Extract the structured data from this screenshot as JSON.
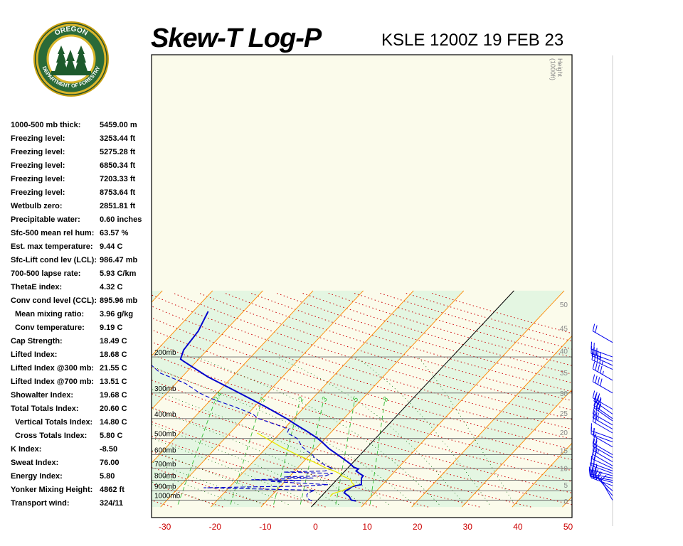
{
  "header": {
    "title": "Skew-T Log-P",
    "subtitle": "KSLE 1200Z 19 FEB 23"
  },
  "logo": {
    "text_top": "OREGON",
    "text_bottom": "DEPARTMENT OF FORESTRY"
  },
  "stats": [
    {
      "label": "1000-500 mb thick:",
      "value": "5459.00 m"
    },
    {
      "label": "Freezing level:",
      "value": "3253.44 ft"
    },
    {
      "label": "Freezing level:",
      "value": "5275.28 ft"
    },
    {
      "label": "Freezing level:",
      "value": "6850.34 ft"
    },
    {
      "label": "Freezing level:",
      "value": "7203.33 ft"
    },
    {
      "label": "Freezing level:",
      "value": "8753.64 ft"
    },
    {
      "label": "Wetbulb zero:",
      "value": "2851.81 ft"
    },
    {
      "label": "Precipitable water:",
      "value": "0.60 inches"
    },
    {
      "label": "Sfc-500 mean rel hum:",
      "value": "63.57 %"
    },
    {
      "label": "Est. max temperature:",
      "value": "9.44 C"
    },
    {
      "label": "Sfc-Lift cond lev (LCL):",
      "value": "986.47 mb"
    },
    {
      "label": "700-500 lapse rate:",
      "value": "5.93 C/km"
    },
    {
      "label": "ThetaE index:",
      "value": "4.32 C"
    },
    {
      "label": "Conv cond level (CCL):",
      "value": "895.96 mb"
    },
    {
      "label": "Mean mixing ratio:",
      "value": "3.96 g/kg",
      "indent": true
    },
    {
      "label": "Conv temperature:",
      "value": "9.19 C",
      "indent": true
    },
    {
      "label": "Cap Strength:",
      "value": "18.49 C"
    },
    {
      "label": "Lifted Index:",
      "value": "18.68 C"
    },
    {
      "label": "Lifted Index @300 mb:",
      "value": "21.55 C"
    },
    {
      "label": "Lifted Index @700 mb:",
      "value": "13.51 C"
    },
    {
      "label": "Showalter Index:",
      "value": "19.68 C"
    },
    {
      "label": "Total Totals Index:",
      "value": "20.60 C"
    },
    {
      "label": "Vertical Totals Index:",
      "value": "14.80 C",
      "indent": true
    },
    {
      "label": "Cross Totals Index:",
      "value": "5.80 C",
      "indent": true
    },
    {
      "label": "K Index:",
      "value": "-8.50"
    },
    {
      "label": "Sweat Index:",
      "value": "76.00"
    },
    {
      "label": "Energy Index:",
      "value": "5.80"
    },
    {
      "label": "Yonker Mixing Height:",
      "value": "4862 ft"
    },
    {
      "label": "Transport wind:",
      "value": "324/11"
    }
  ],
  "chart_data": {
    "type": "line",
    "x_ticks": [
      -30,
      -20,
      -10,
      0,
      10,
      20,
      30,
      40,
      50
    ],
    "pressure_labels": [
      {
        "p": 200,
        "label": "200mb"
      },
      {
        "p": 300,
        "label": "300mb"
      },
      {
        "p": 400,
        "label": "400mb"
      },
      {
        "p": 500,
        "label": "500mb"
      },
      {
        "p": 600,
        "label": "600mb"
      },
      {
        "p": 700,
        "label": "700mb"
      },
      {
        "p": 800,
        "label": "800mb"
      },
      {
        "p": 900,
        "label": "900mb"
      },
      {
        "p": 1000,
        "label": "1000mb"
      }
    ],
    "height_axis_label": [
      "Height",
      "(1000ft)"
    ],
    "height_ticks": [
      {
        "ft": 0,
        "label": "0"
      },
      {
        "ft": 5,
        "label": "5"
      },
      {
        "ft": 10,
        "label": "10"
      },
      {
        "ft": 15,
        "label": "15"
      },
      {
        "ft": 20,
        "label": "20"
      },
      {
        "ft": 25,
        "label": "25"
      },
      {
        "ft": 30,
        "label": "30"
      },
      {
        "ft": 35,
        "label": "35"
      },
      {
        "ft": 40,
        "label": "40"
      },
      {
        "ft": 45,
        "label": "45"
      },
      {
        "ft": 50,
        "label": "50"
      }
    ],
    "mixing_ratio_labels": [
      "0.4",
      "1",
      "2",
      "3",
      "5",
      "8"
    ],
    "series": [
      {
        "color": "#0000cc",
        "style": "solid",
        "points": [
          {
            "p": 1010,
            "t": 7.8
          },
          {
            "p": 1000,
            "t": 6.7
          },
          {
            "p": 960,
            "t": 5.6
          },
          {
            "p": 920,
            "t": 3.9
          },
          {
            "p": 900,
            "t": 3.8
          },
          {
            "p": 880,
            "t": 4.2
          },
          {
            "p": 860,
            "t": 4.3
          },
          {
            "p": 850,
            "t": 4.9
          },
          {
            "p": 840,
            "t": 5.8
          },
          {
            "p": 800,
            "t": 5.0
          },
          {
            "p": 780,
            "t": 4.6
          },
          {
            "p": 760,
            "t": 4.5
          },
          {
            "p": 740,
            "t": 3.3
          },
          {
            "p": 720,
            "t": 2.2
          },
          {
            "p": 705,
            "t": 2.3
          },
          {
            "p": 690,
            "t": 1.0
          },
          {
            "p": 670,
            "t": 0.0
          },
          {
            "p": 650,
            "t": -1.2
          },
          {
            "p": 600,
            "t": -4.5
          },
          {
            "p": 560,
            "t": -7.4
          },
          {
            "p": 520,
            "t": -10.0
          },
          {
            "p": 495,
            "t": -11.9
          },
          {
            "p": 460,
            "t": -15.1
          },
          {
            "p": 430,
            "t": -18.2
          },
          {
            "p": 400,
            "t": -21.4
          },
          {
            "p": 350,
            "t": -27.8
          },
          {
            "p": 300,
            "t": -35.6
          },
          {
            "p": 250,
            "t": -44.9
          },
          {
            "p": 210,
            "t": -52.6
          },
          {
            "p": 205,
            "t": -53.6
          },
          {
            "p": 185,
            "t": -54.7
          },
          {
            "p": 150,
            "t": -55.3
          },
          {
            "p": 120,
            "t": -57.0
          }
        ]
      },
      {
        "color": "#0000cc",
        "style": "dashed",
        "points": [
          {
            "p": 1010,
            "t": -1.0
          },
          {
            "p": 980,
            "t": -2.4
          },
          {
            "p": 960,
            "t": -2.8
          },
          {
            "p": 940,
            "t": -3.2
          },
          {
            "p": 920,
            "t": -3.2
          },
          {
            "p": 895,
            "t": -2.4
          },
          {
            "p": 870,
            "t": -25.0
          },
          {
            "p": 860,
            "t": -14.0
          },
          {
            "p": 855,
            "t": -6.0
          },
          {
            "p": 840,
            "t": -0.8
          },
          {
            "p": 820,
            "t": -9.0
          },
          {
            "p": 810,
            "t": -13.0
          },
          {
            "p": 800,
            "t": -7.0
          },
          {
            "p": 795,
            "t": -17.0
          },
          {
            "p": 780,
            "t": -5.0
          },
          {
            "p": 770,
            "t": -11.0
          },
          {
            "p": 760,
            "t": -3.0
          },
          {
            "p": 740,
            "t": -2.0
          },
          {
            "p": 730,
            "t": -12.0
          },
          {
            "p": 720,
            "t": -4.0
          },
          {
            "p": 700,
            "t": -2.9
          },
          {
            "p": 680,
            "t": -4.8
          },
          {
            "p": 650,
            "t": -6.6
          },
          {
            "p": 620,
            "t": -8.6
          },
          {
            "p": 600,
            "t": -9.5
          },
          {
            "p": 580,
            "t": -11.0
          },
          {
            "p": 550,
            "t": -13.0
          },
          {
            "p": 520,
            "t": -14.5
          },
          {
            "p": 500,
            "t": -15.6
          },
          {
            "p": 470,
            "t": -18.6
          },
          {
            "p": 450,
            "t": -19.0
          },
          {
            "p": 430,
            "t": -22.0
          },
          {
            "p": 400,
            "t": -27.0
          },
          {
            "p": 380,
            "t": -29.0
          },
          {
            "p": 350,
            "t": -34.0
          },
          {
            "p": 320,
            "t": -40.0
          },
          {
            "p": 300,
            "t": -43.5
          },
          {
            "p": 270,
            "t": -48.0
          },
          {
            "p": 250,
            "t": -52.5
          },
          {
            "p": 240,
            "t": -55.0
          },
          {
            "p": 215,
            "t": -59.0
          },
          {
            "p": 200,
            "t": -61.0
          },
          {
            "p": 190,
            "t": -62.0
          },
          {
            "p": 160,
            "t": -71.0
          },
          {
            "p": 140,
            "t": -72.0
          },
          {
            "p": 110,
            "t": -80.0
          }
        ]
      },
      {
        "color": "#e8e800",
        "style": "solid",
        "points": [
          {
            "p": 960,
            "t": 1.8
          },
          {
            "p": 930,
            "t": 1.8
          },
          {
            "p": 900,
            "t": 3.1
          },
          {
            "p": 870,
            "t": 3.8
          },
          {
            "p": 845,
            "t": 4.5
          },
          {
            "p": 820,
            "t": 3.5
          },
          {
            "p": 800,
            "t": 3.0
          },
          {
            "p": 780,
            "t": 1.8
          },
          {
            "p": 760,
            "t": 0.3
          },
          {
            "p": 740,
            "t": -0.7
          },
          {
            "p": 720,
            "t": -2.2
          },
          {
            "p": 700,
            "t": -4.1
          },
          {
            "p": 650,
            "t": -8.0
          },
          {
            "p": 600,
            "t": -12.6
          },
          {
            "p": 550,
            "t": -17.2
          },
          {
            "p": 500,
            "t": -21.7
          },
          {
            "p": 470,
            "t": -24.6
          }
        ]
      }
    ],
    "wind_barbs": [
      {
        "p": 1000,
        "dir": 330,
        "kt": 10
      },
      {
        "p": 950,
        "dir": 320,
        "kt": 15
      },
      {
        "p": 900,
        "dir": 310,
        "kt": 20
      },
      {
        "p": 850,
        "dir": 290,
        "kt": 25
      },
      {
        "p": 820,
        "dir": 285,
        "kt": 25
      },
      {
        "p": 800,
        "dir": 280,
        "kt": 30
      },
      {
        "p": 780,
        "dir": 280,
        "kt": 30
      },
      {
        "p": 760,
        "dir": 285,
        "kt": 25
      },
      {
        "p": 740,
        "dir": 290,
        "kt": 25
      },
      {
        "p": 720,
        "dir": 290,
        "kt": 20
      },
      {
        "p": 700,
        "dir": 295,
        "kt": 20
      },
      {
        "p": 680,
        "dir": 300,
        "kt": 20
      },
      {
        "p": 650,
        "dir": 300,
        "kt": 25
      },
      {
        "p": 620,
        "dir": 300,
        "kt": 20
      },
      {
        "p": 600,
        "dir": 300,
        "kt": 20
      },
      {
        "p": 550,
        "dir": 300,
        "kt": 15
      },
      {
        "p": 520,
        "dir": 290,
        "kt": 15
      },
      {
        "p": 500,
        "dir": 290,
        "kt": 15
      },
      {
        "p": 470,
        "dir": 300,
        "kt": 20
      },
      {
        "p": 450,
        "dir": 300,
        "kt": 25
      },
      {
        "p": 430,
        "dir": 300,
        "kt": 25
      },
      {
        "p": 410,
        "dir": 305,
        "kt": 30
      },
      {
        "p": 400,
        "dir": 305,
        "kt": 30
      },
      {
        "p": 380,
        "dir": 305,
        "kt": 30
      },
      {
        "p": 360,
        "dir": 300,
        "kt": 35
      },
      {
        "p": 300,
        "dir": 300,
        "kt": 40
      },
      {
        "p": 260,
        "dir": 300,
        "kt": 45
      },
      {
        "p": 230,
        "dir": 295,
        "kt": 45
      },
      {
        "p": 220,
        "dir": 295,
        "kt": 40
      },
      {
        "p": 210,
        "dir": 290,
        "kt": 30
      },
      {
        "p": 200,
        "dir": 290,
        "kt": 20
      },
      {
        "p": 170,
        "dir": 300,
        "kt": 20
      }
    ]
  },
  "colors": {
    "isotherm": "#ff8800",
    "pressure_line": "#666666",
    "dry_adiabat": "#cc0000",
    "moist_adiabat": "#006600",
    "mixing_ratio": "#33bb33",
    "temperature": "#0000cc",
    "parcel": "#e8e800",
    "axis_labels": "#cc0000"
  }
}
